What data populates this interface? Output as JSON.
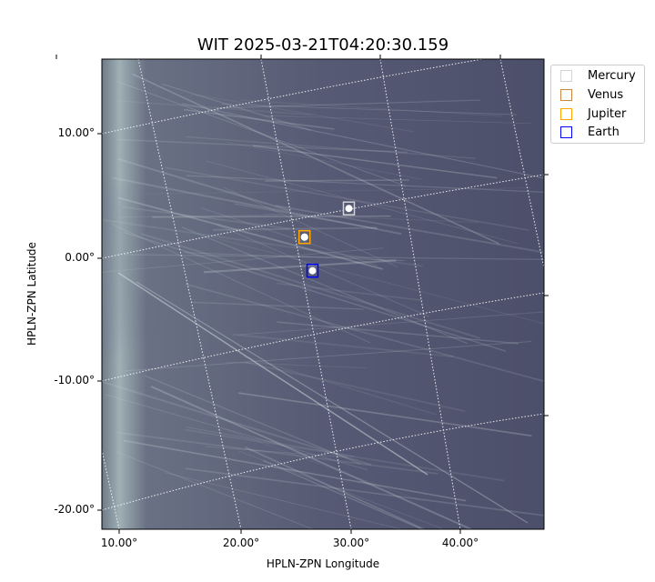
{
  "chart_data": {
    "type": "heatmap",
    "title": "WIT 2025-03-21T04:20:30.159",
    "xlabel": "HPLN-ZPN Longitude",
    "ylabel": "HPLN-ZPN Latitude",
    "xticks": [
      "10.00°",
      "20.00°",
      "30.00°",
      "40.00°"
    ],
    "yticks": [
      "10.00°",
      "0.00°",
      "-10.00°",
      "-20.00°"
    ],
    "grid": true,
    "colormap": "bone",
    "legend_placement": "outside-top-right",
    "markers": [
      {
        "name": "Mercury",
        "color": "#d3d3d3",
        "lon": 30.2,
        "lat": 4.0
      },
      {
        "name": "Venus",
        "color": "#cd853f",
        "lon": 26.3,
        "lat": 1.7
      },
      {
        "name": "Jupiter",
        "color": "#ffa500",
        "lon": 26.3,
        "lat": 1.7
      },
      {
        "name": "Earth",
        "color": "#0000ff",
        "lon": 27.0,
        "lat": -1.0
      }
    ]
  }
}
